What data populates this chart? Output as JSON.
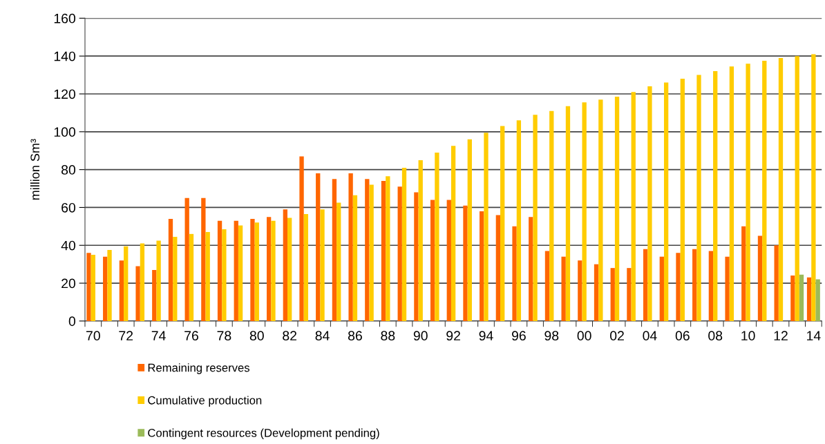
{
  "chart_data": {
    "type": "bar",
    "ylabel": "million Sm³",
    "categories": [
      "70",
      null,
      "72",
      null,
      "74",
      null,
      "76",
      null,
      "78",
      null,
      "80",
      null,
      "82",
      null,
      "84",
      null,
      "86",
      null,
      "88",
      null,
      "90",
      null,
      "92",
      null,
      "94",
      null,
      "96",
      null,
      "98",
      null,
      "00",
      null,
      "02",
      null,
      "04",
      null,
      "06",
      null,
      "08",
      null,
      "10",
      null,
      "12",
      null,
      "14"
    ],
    "series": [
      {
        "name": "Remaining reserves",
        "color": "#ff6600",
        "values": [
          36,
          34,
          32,
          29,
          27,
          54,
          65,
          65,
          53,
          53,
          54,
          55,
          59,
          87,
          78,
          75,
          78,
          75,
          74,
          71,
          68,
          64,
          64,
          61,
          58,
          56,
          50,
          55,
          37,
          34,
          32,
          30,
          28,
          28,
          38,
          34,
          36,
          38,
          37,
          34,
          50,
          45,
          40,
          24,
          23
        ]
      },
      {
        "name": "Cumulative production",
        "color": "#ffcc00",
        "values": [
          35,
          37.5,
          39.5,
          41,
          42.5,
          44.5,
          46,
          47,
          48.5,
          50.5,
          52,
          53,
          54.5,
          56.5,
          59,
          62.5,
          66.5,
          72,
          76.5,
          81,
          85,
          89,
          92.5,
          96,
          99.5,
          103,
          106,
          109,
          111,
          113.5,
          115.5,
          117,
          118.5,
          121,
          124,
          126,
          128,
          130,
          132,
          134.5,
          136,
          137.5,
          139,
          140,
          141
        ]
      },
      {
        "name": "Contingent resources (Development pending)",
        "color": "#9bbb59",
        "values": [
          null,
          null,
          null,
          null,
          null,
          null,
          null,
          null,
          null,
          null,
          null,
          null,
          null,
          null,
          null,
          null,
          null,
          null,
          null,
          null,
          null,
          null,
          null,
          null,
          null,
          null,
          null,
          null,
          null,
          null,
          null,
          null,
          null,
          null,
          null,
          null,
          null,
          null,
          null,
          null,
          null,
          null,
          null,
          24.5,
          22
        ]
      }
    ],
    "ylim": [
      0,
      160
    ],
    "yticks": [
      0,
      20,
      40,
      60,
      80,
      100,
      120,
      140,
      160
    ],
    "grid": "y",
    "legend": "bottom"
  }
}
